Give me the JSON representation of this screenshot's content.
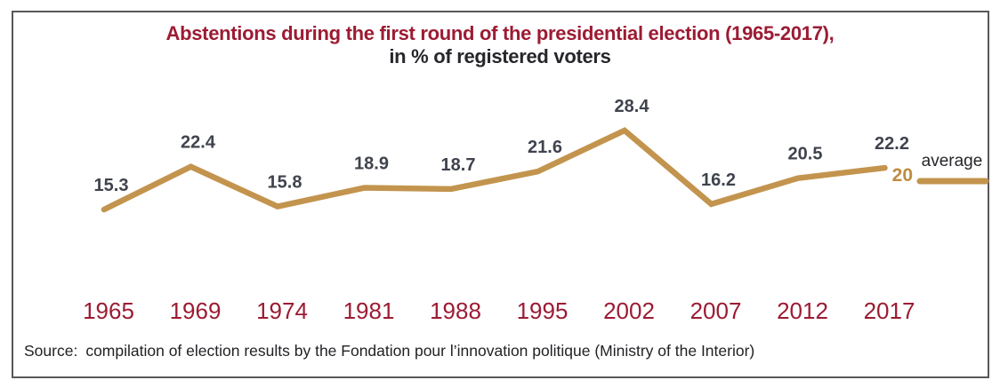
{
  "title": {
    "line1": "Abstentions during the first round of the presidential election (1965-2017),",
    "line2": "in % of registered voters"
  },
  "legend": {
    "average_label": "average",
    "average_value": "20"
  },
  "source": {
    "label": "Source:",
    "text": "compilation of election results by the Fondation pour l’innovation politique (Ministry of the Interior)"
  },
  "colors": {
    "series_line": "#C3944E",
    "average_value_text": "#BE8C3F",
    "accent_red": "#9C1B33",
    "value_label": "#3F434D",
    "dark_text": "#26262B",
    "frame_border": "#58585A"
  },
  "chart_data": {
    "type": "line",
    "categories": [
      "1965",
      "1969",
      "1974",
      "1981",
      "1988",
      "1995",
      "2002",
      "2007",
      "2012",
      "2017"
    ],
    "series": [
      {
        "name": "Abstentions, first round of presidential election",
        "values": [
          15.3,
          22.4,
          15.8,
          18.9,
          18.7,
          21.6,
          28.4,
          16.2,
          20.5,
          22.2
        ]
      }
    ],
    "average": 20,
    "data_labels": [
      15.3,
      22.4,
      15.8,
      18.9,
      18.7,
      21.6,
      28.4,
      16.2,
      20.5,
      22.2
    ],
    "title": "Abstentions during the first round of the presidential election (1965-2017), in % of registered voters",
    "xlabel": "",
    "ylabel": "% of registered voters",
    "grid": false,
    "axes_visible": false,
    "legend_entries": [
      "average"
    ],
    "legend_position": "right",
    "ylim": [
      14,
      30
    ]
  }
}
